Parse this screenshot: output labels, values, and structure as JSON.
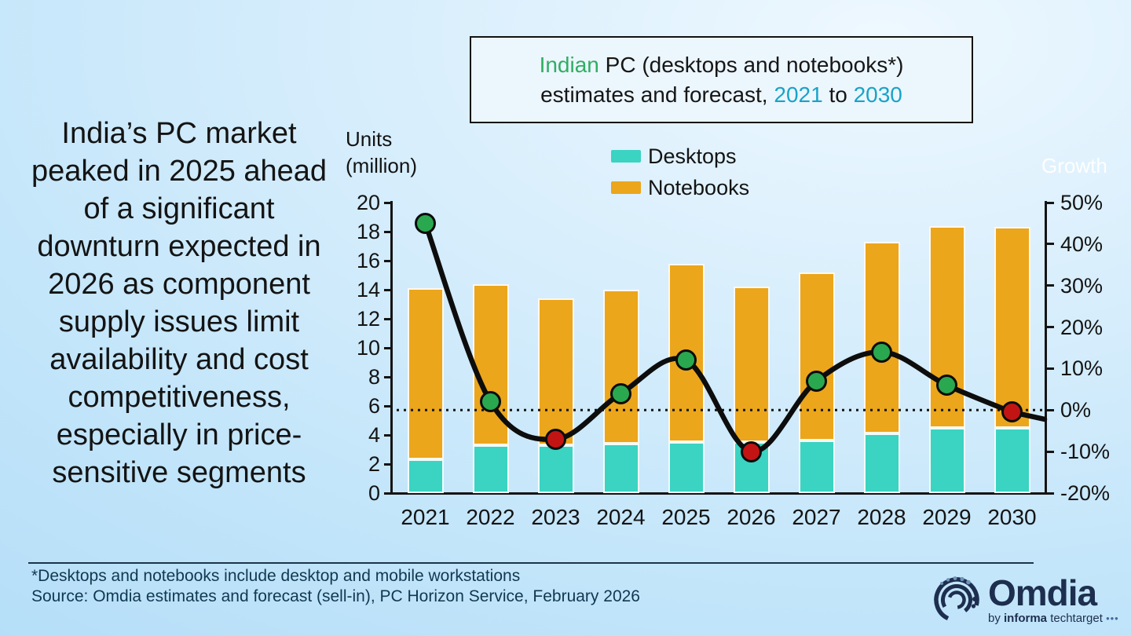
{
  "headline": {
    "lines": [
      "India’s PC market",
      "peaked in 2025 ahead",
      "of a significant",
      "downturn expected in",
      "2026 as component",
      "supply issues limit",
      "availability and cost",
      "competitiveness,",
      "especially in price-",
      "sensitive segments"
    ]
  },
  "title": {
    "word_green": "Indian",
    "line1_rest": " PC (desktops and notebooks*)",
    "line2_prefix": "estimates and forecast, ",
    "year_start": "2021",
    "to_word": " to ",
    "year_end": "2030"
  },
  "axis_labels": {
    "left_title_line1": "Units",
    "left_title_line2": "(million)",
    "right_title": "Growth"
  },
  "legend": {
    "items": [
      {
        "label": "Desktops",
        "color": "#3bd3c2"
      },
      {
        "label": "Notebooks",
        "color": "#eba61c"
      }
    ]
  },
  "colors": {
    "desktops_bar": "#3bd3c2",
    "notebooks_bar": "#eba61c",
    "growth_line": "#0d0d0d",
    "marker_positive": "#2aa84f",
    "marker_negative": "#c31414",
    "axis": "#141414",
    "title_green": "#2fae63",
    "title_cyan": "#18a3c8",
    "footer_text": "#103850",
    "logo_navy": "#1d2e4f"
  },
  "chart_data": {
    "type": "bar+line",
    "title": "Indian PC (desktops and notebooks*) estimates and forecast, 2021 to 2030",
    "categories": [
      "2021",
      "2022",
      "2023",
      "2024",
      "2025",
      "2026",
      "2027",
      "2028",
      "2029",
      "2030"
    ],
    "series": [
      {
        "name": "Desktops",
        "kind": "bar-stacked",
        "axis": "left",
        "color": "#3bd3c2",
        "values": [
          2.3,
          3.3,
          3.3,
          3.4,
          3.5,
          3.5,
          3.6,
          4.1,
          4.5,
          4.5
        ]
      },
      {
        "name": "Notebooks",
        "kind": "bar-stacked",
        "axis": "left",
        "color": "#eba61c",
        "values": [
          11.8,
          11.1,
          10.1,
          10.6,
          12.3,
          10.7,
          11.6,
          13.2,
          13.9,
          13.8
        ]
      },
      {
        "name": "Growth",
        "kind": "line",
        "axis": "right",
        "color": "#0d0d0d",
        "values": [
          45,
          2,
          -7,
          4,
          12,
          -10,
          7,
          14,
          6,
          -0.5
        ]
      }
    ],
    "stacked_totals": [
      14.1,
      14.4,
      13.4,
      14.0,
      15.8,
      14.2,
      15.2,
      17.3,
      18.4,
      18.3
    ],
    "left_axis": {
      "title": "Units (million)",
      "min": 0,
      "max": 20,
      "step": 2
    },
    "right_axis": {
      "title": "Growth",
      "min": -20,
      "max": 50,
      "step": 10,
      "suffix": "%"
    },
    "zero_line": true,
    "grid": false,
    "legend_position": "top",
    "marker_rule": "green marker if growth >= 0, red marker if growth < 0"
  },
  "footer": {
    "footnote": "*Desktops and notebooks include desktop and mobile workstations",
    "source": "Source: Omdia estimates and forecast (sell-in), PC Horizon Service, February 2026"
  },
  "logo": {
    "brand": "Omdia",
    "tagline_by": "by ",
    "tagline_bold": "informa",
    "tagline_rest": " techtarget ",
    "tagline_dots": "•••"
  }
}
